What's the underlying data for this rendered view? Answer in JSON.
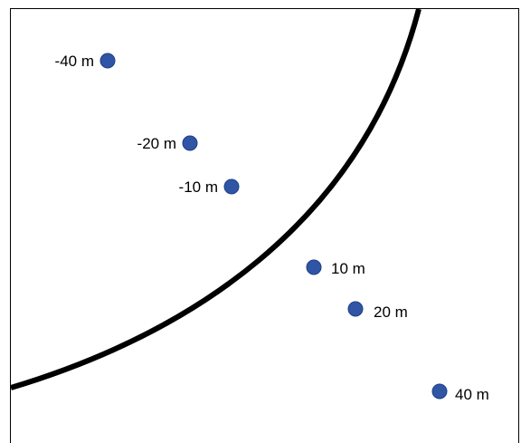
{
  "colors": {
    "curve": "#000000",
    "point_fill": "#2F55A4",
    "point_stroke": "#1F3F86",
    "label": "#000000",
    "frame": "#000000"
  },
  "points": [
    {
      "label": "-40 m",
      "side": "left"
    },
    {
      "label": "-20 m",
      "side": "left"
    },
    {
      "label": "-10 m",
      "side": "left"
    },
    {
      "label": "10 m",
      "side": "right"
    },
    {
      "label": "20 m",
      "side": "right"
    },
    {
      "label": "40 m",
      "side": "right"
    }
  ]
}
